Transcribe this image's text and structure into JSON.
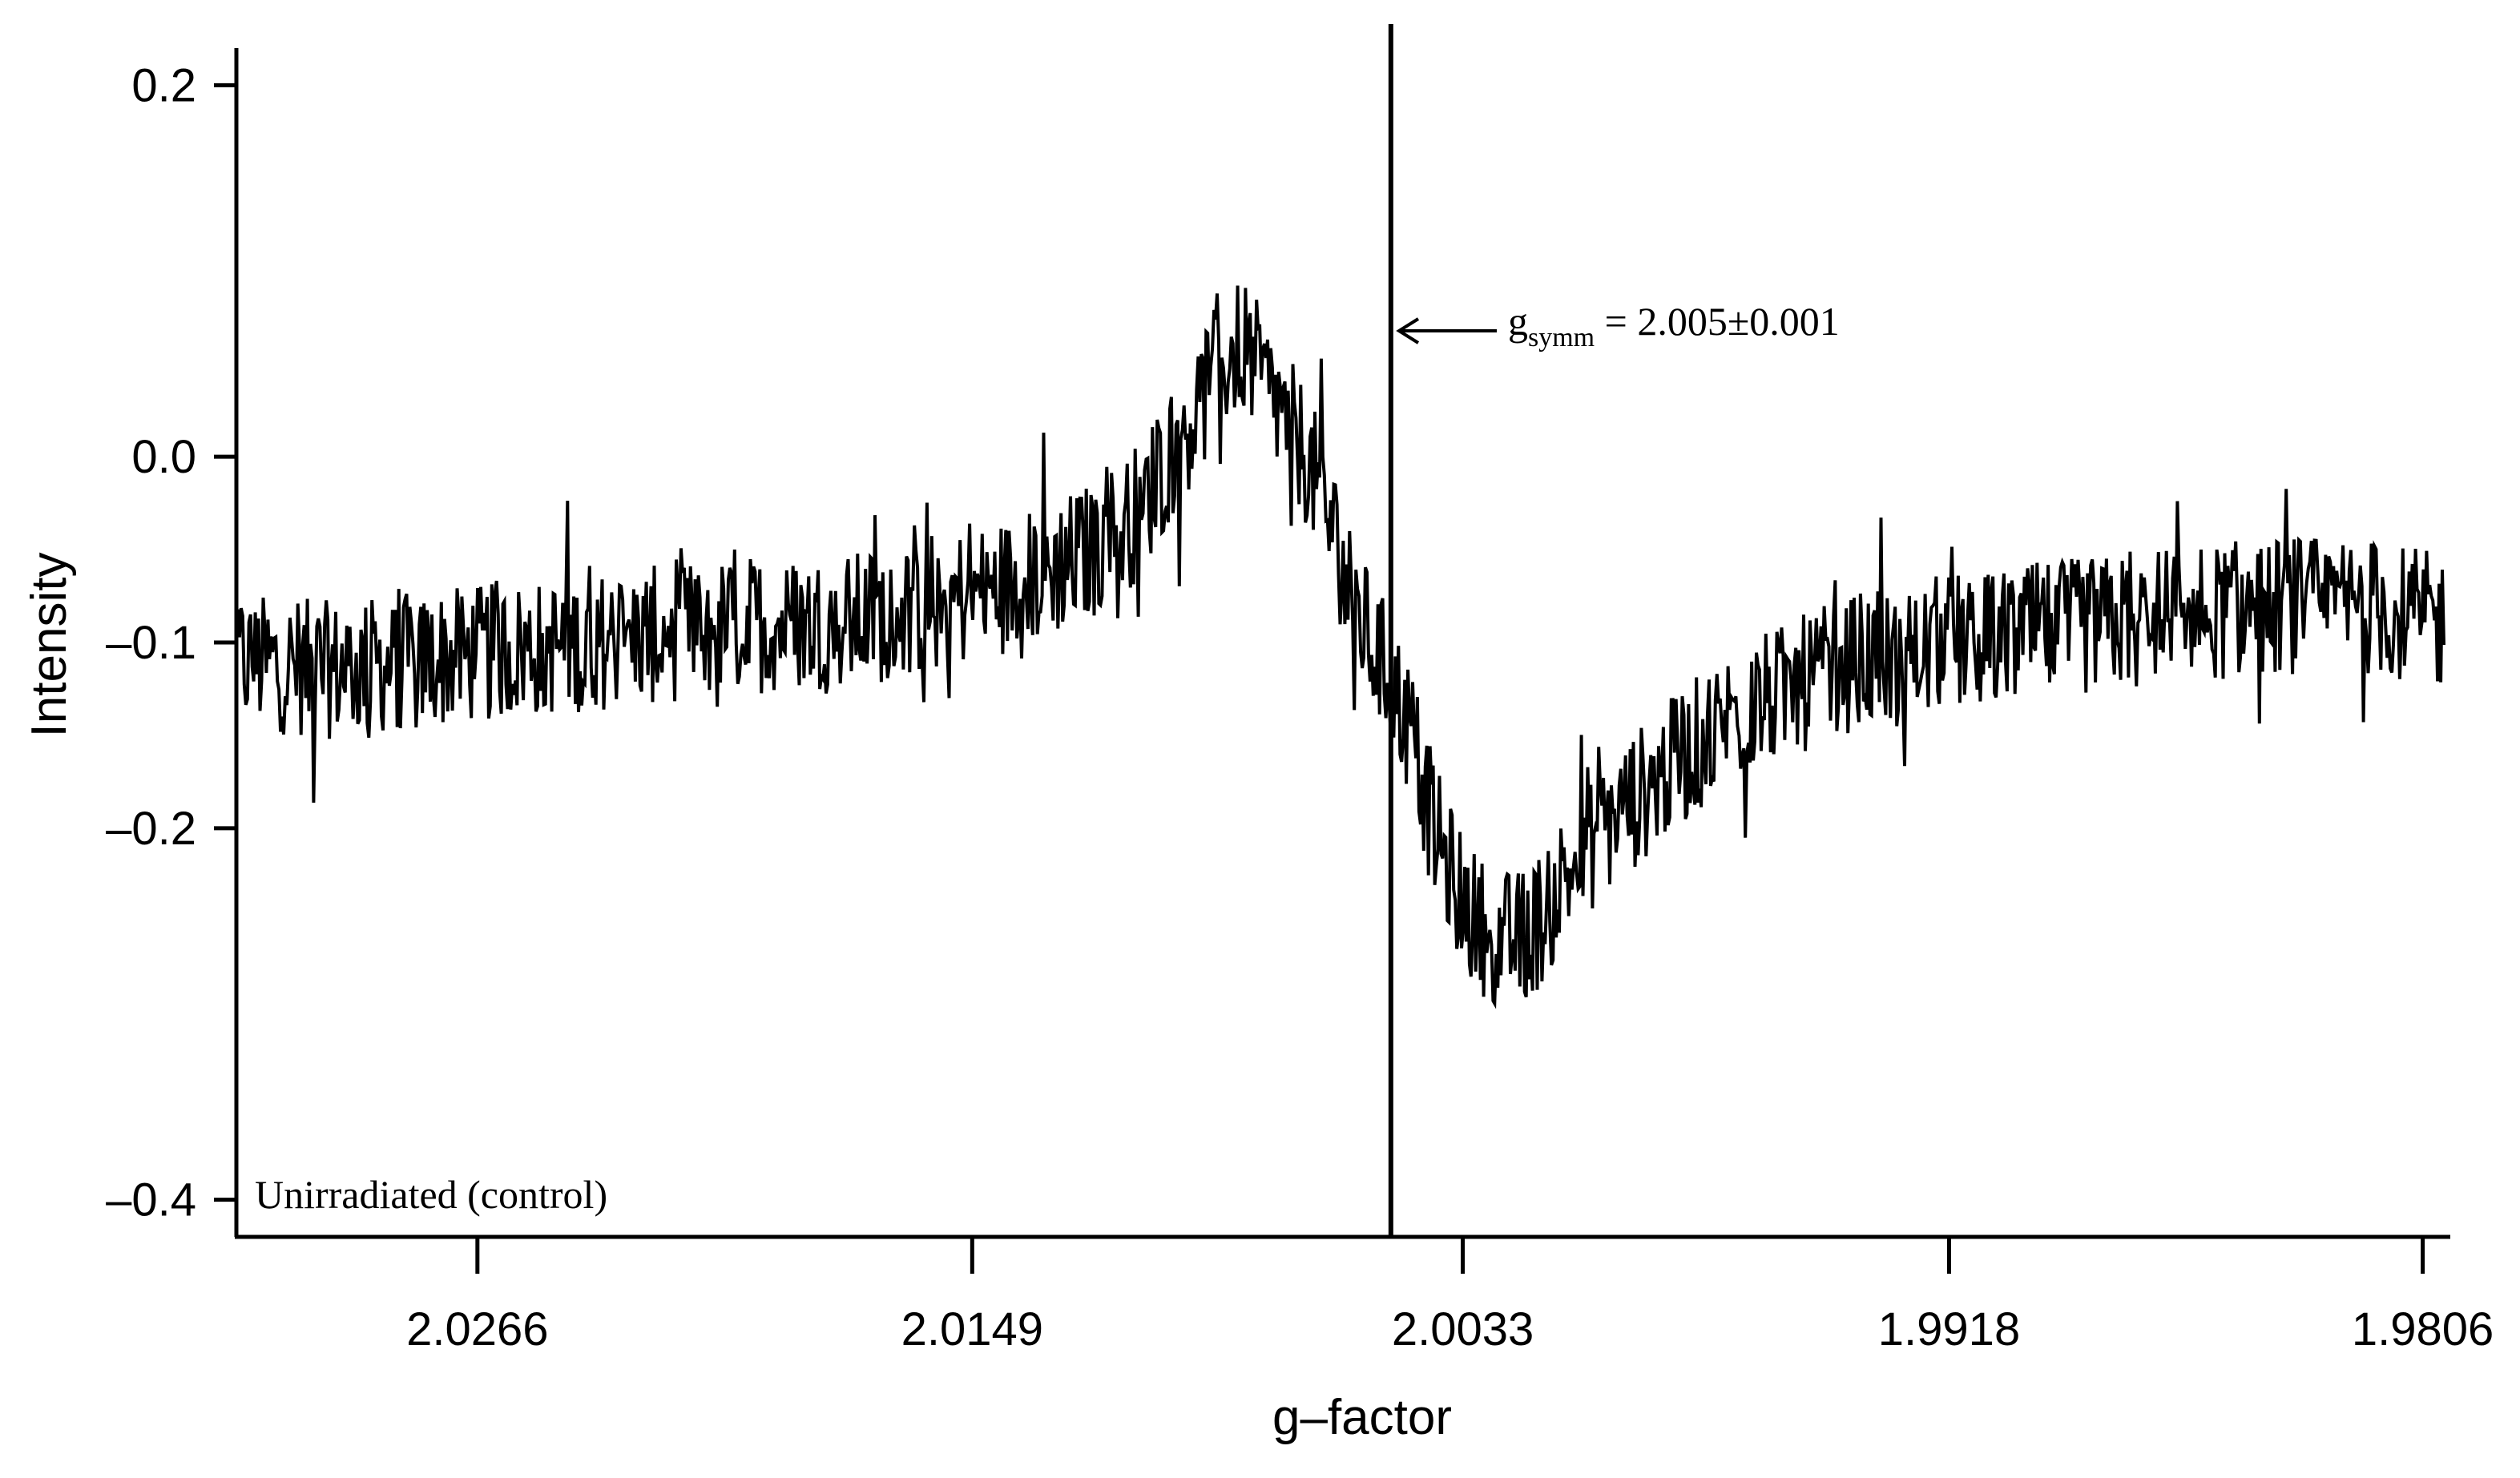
{
  "chart_data": {
    "type": "line",
    "xlabel": "g–factor",
    "ylabel": "Intensity",
    "x_reversed": true,
    "xlim": [
      2.0323,
      1.9801
    ],
    "ylim": [
      -0.42,
      0.22
    ],
    "x_ticks": [
      {
        "value": 2.0266,
        "label": "2.0266"
      },
      {
        "value": 2.0149,
        "label": "2.0149"
      },
      {
        "value": 2.0033,
        "label": "2.0033"
      },
      {
        "value": 1.9918,
        "label": "1.9918"
      },
      {
        "value": 1.9806,
        "label": "1.9806"
      }
    ],
    "y_ticks": [
      {
        "value": 0.2,
        "label": "0.2"
      },
      {
        "value": 0.0,
        "label": "0.0"
      },
      {
        "value": -0.1,
        "label": "–0.1"
      },
      {
        "value": -0.2,
        "label": "–0.2"
      },
      {
        "value": -0.4,
        "label": "–0.4"
      }
    ],
    "grid": false,
    "series": [
      {
        "color": "#000000",
        "x": [
          2.0323,
          2.03,
          2.028,
          2.026,
          2.024,
          2.022,
          2.02,
          2.018,
          2.016,
          2.014,
          2.013,
          2.012,
          2.011,
          2.0105,
          2.01,
          2.0095,
          2.009,
          2.0085,
          2.008,
          2.0075,
          2.007,
          2.0065,
          2.006,
          2.0055,
          2.005,
          2.0045,
          2.004,
          2.0035,
          2.003,
          2.0025,
          2.002,
          2.0015,
          2.001,
          2.0,
          1.999,
          1.998,
          1.997,
          1.996,
          1.995,
          1.994,
          1.993,
          1.992,
          1.991,
          1.99,
          1.988,
          1.986,
          1.984,
          1.982,
          1.9801
        ],
        "values": [
          -0.11,
          -0.115,
          -0.11,
          -0.105,
          -0.1,
          -0.095,
          -0.09,
          -0.09,
          -0.08,
          -0.07,
          -0.06,
          -0.05,
          -0.03,
          -0.01,
          0.01,
          0.03,
          0.05,
          0.06,
          0.04,
          0.02,
          0.0,
          -0.03,
          -0.07,
          -0.1,
          -0.12,
          -0.15,
          -0.2,
          -0.23,
          -0.25,
          -0.26,
          -0.26,
          -0.25,
          -0.23,
          -0.2,
          -0.18,
          -0.16,
          -0.14,
          -0.13,
          -0.12,
          -0.11,
          -0.11,
          -0.1,
          -0.1,
          -0.095,
          -0.09,
          -0.085,
          -0.08,
          -0.08,
          -0.09
        ]
      }
    ],
    "center_line": {
      "x": 2.005
    },
    "annotations": [
      {
        "id": "gsymm",
        "prefix": "g",
        "subscript": "symm",
        "text": " = 2.005±0.001"
      },
      {
        "id": "sample",
        "text": "Unirradiated (control)"
      }
    ]
  }
}
